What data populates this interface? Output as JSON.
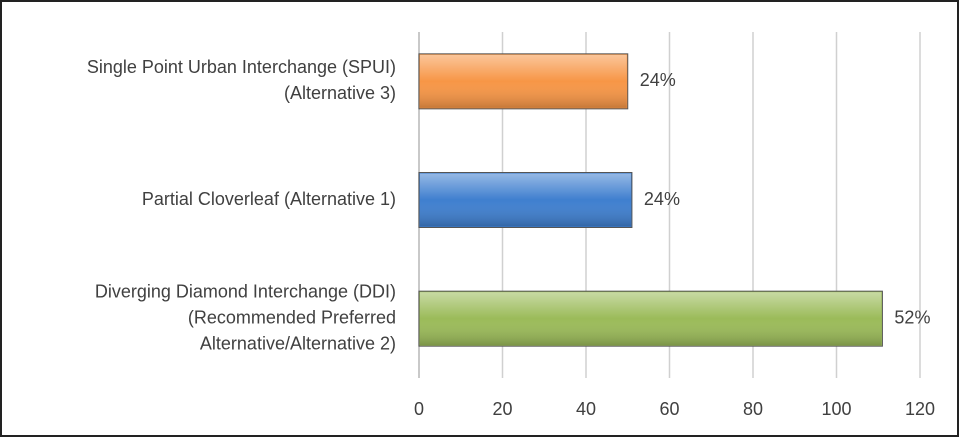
{
  "chart_data": {
    "type": "bar",
    "orientation": "horizontal",
    "categories": [
      [
        "Single Point Urban Interchange (SPUI)",
        "(Alternative 3)"
      ],
      [
        "Partial Cloverleaf (Alternative 1)"
      ],
      [
        "Diverging Diamond Interchange (DDI)",
        "(Recommended Preferred",
        "Alternative/Alternative 2)"
      ]
    ],
    "values": [
      50,
      51,
      111
    ],
    "value_labels": [
      "24%",
      "24%",
      "52%"
    ],
    "colors": [
      "#f79646",
      "#3f7fcf",
      "#9bbb59"
    ],
    "xlim": [
      0,
      120
    ],
    "xticks": [
      0,
      20,
      40,
      60,
      80,
      100,
      120
    ],
    "grid": true
  }
}
